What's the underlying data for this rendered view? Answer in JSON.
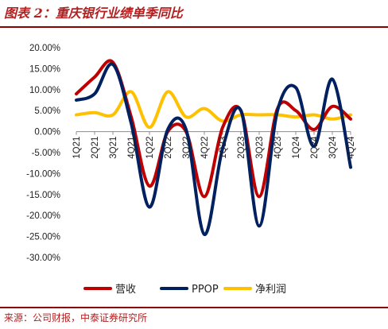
{
  "figure": {
    "title": "图表 2：重庆银行业绩单季同比",
    "source": "来源：公司财报，中泰证券研究所"
  },
  "colors": {
    "red": "#c00000",
    "navy": "#002060",
    "gold": "#ffc000",
    "title": "#b41f1f"
  },
  "chart_data": {
    "type": "line",
    "title": "",
    "xlabel": "",
    "ylabel": "",
    "ylim": [
      -30,
      20
    ],
    "yticks": [
      20,
      15,
      10,
      5,
      0,
      -5,
      -10,
      -15,
      -20,
      -25,
      -30
    ],
    "ytick_labels": [
      "20.00%",
      "15.00%",
      "10.00%",
      "5.00%",
      "0.00%",
      "-5.00%",
      "-10.00%",
      "-15.00%",
      "-20.00%",
      "-25.00%",
      "-30.00%"
    ],
    "smooth": true,
    "grid": false,
    "legend_position": "bottom",
    "categories": [
      "1Q21",
      "2Q21",
      "3Q21",
      "4Q21",
      "1Q22",
      "2Q22",
      "3Q22",
      "4Q22",
      "1Q23",
      "2Q23",
      "3Q23",
      "4Q23",
      "1Q24",
      "2Q24",
      "3Q24",
      "4Q24"
    ],
    "series": [
      {
        "name": "营收",
        "color": "#c00000",
        "values": [
          9.0,
          13.0,
          16.5,
          3.5,
          -13.0,
          0.0,
          0.0,
          -15.5,
          1.0,
          5.0,
          -15.5,
          5.5,
          5.0,
          0.5,
          6.0,
          3.0
        ]
      },
      {
        "name": "PPOP",
        "color": "#002060",
        "values": [
          7.5,
          9.0,
          16.0,
          2.0,
          -18.0,
          0.5,
          0.5,
          -24.5,
          -4.0,
          5.0,
          -22.5,
          5.0,
          10.5,
          -3.5,
          12.5,
          -8.5
        ]
      },
      {
        "name": "净利润",
        "color": "#ffc000",
        "values": [
          4.0,
          4.5,
          4.0,
          9.5,
          1.0,
          9.5,
          3.5,
          5.5,
          2.5,
          4.0,
          4.0,
          4.0,
          3.5,
          4.0,
          3.0,
          4.0
        ]
      }
    ]
  }
}
